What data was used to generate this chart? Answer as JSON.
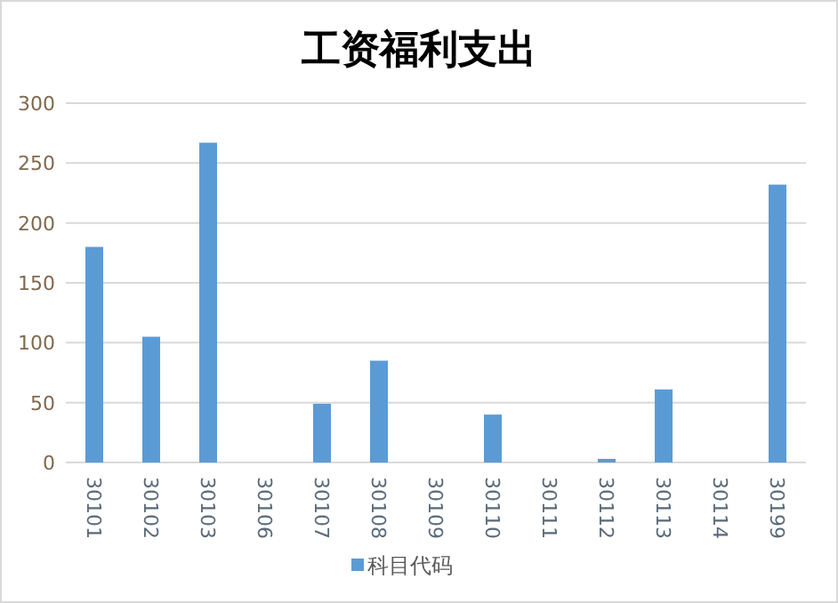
{
  "chart_data": {
    "type": "bar",
    "title": "工资福利支出",
    "categories": [
      "30101",
      "30102",
      "30103",
      "30106",
      "30107",
      "30108",
      "30109",
      "30110",
      "30111",
      "30112",
      "30113",
      "30114",
      "30199"
    ],
    "series": [
      {
        "name": "科目代码",
        "color": "#5b9bd5",
        "values": [
          180,
          105,
          267,
          0,
          49,
          85,
          0,
          40,
          0,
          3,
          61,
          0,
          232
        ]
      }
    ],
    "ylim": [
      0,
      300
    ],
    "yticks": [
      0,
      50,
      100,
      150,
      200,
      250,
      300
    ],
    "grid": "y",
    "legend": "bottom"
  }
}
